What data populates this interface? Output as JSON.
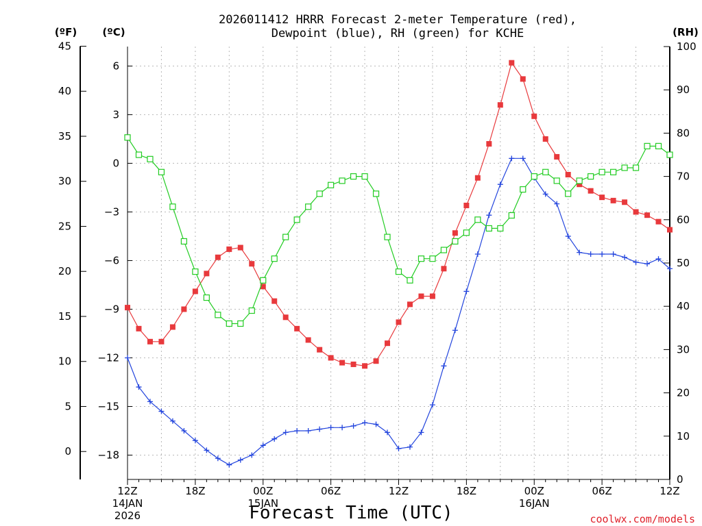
{
  "chart_data": {
    "type": "line",
    "title": "2026011412 HRRR Forecast 2-meter Temperature (red),",
    "subtitle": "Dewpoint (blue), RH (green) for KCHE",
    "xlabel": "Forecast Time (UTC)",
    "ylabel_left_f": "(ºF)",
    "ylabel_left_c": "(ºC)",
    "ylabel_right": "(RH)",
    "credit": "coolwx.com/models",
    "x_hours": [
      0,
      1,
      2,
      3,
      4,
      5,
      6,
      7,
      8,
      9,
      10,
      11,
      12,
      13,
      14,
      15,
      16,
      17,
      18,
      19,
      20,
      21,
      22,
      23,
      24,
      25,
      26,
      27,
      28,
      29,
      30,
      31,
      32,
      33,
      34,
      35,
      36,
      37,
      38,
      39,
      40,
      41,
      42,
      43,
      44,
      45,
      46,
      47,
      48
    ],
    "x_ticks": [
      {
        "hour": 0,
        "line1": "12Z",
        "line2": "14JAN",
        "line3": "2026"
      },
      {
        "hour": 6,
        "line1": "18Z",
        "line2": "",
        "line3": ""
      },
      {
        "hour": 12,
        "line1": "00Z",
        "line2": "15JAN",
        "line3": ""
      },
      {
        "hour": 18,
        "line1": "06Z",
        "line2": "",
        "line3": ""
      },
      {
        "hour": 24,
        "line1": "12Z",
        "line2": "",
        "line3": ""
      },
      {
        "hour": 30,
        "line1": "18Z",
        "line2": "",
        "line3": ""
      },
      {
        "hour": 36,
        "line1": "00Z",
        "line2": "16JAN",
        "line3": ""
      },
      {
        "hour": 42,
        "line1": "06Z",
        "line2": "",
        "line3": ""
      },
      {
        "hour": 48,
        "line1": "12Z",
        "line2": "",
        "line3": ""
      }
    ],
    "ylim_c": [
      -19.5,
      7.2
    ],
    "ylim_f_axis": [
      -3.1,
      45
    ],
    "ylim_rh": [
      0,
      100
    ],
    "y_ticks_c": [
      6,
      3,
      0,
      -3,
      -6,
      -9,
      -12,
      -15,
      -18
    ],
    "y_ticks_c_labels": [
      "6",
      "3",
      "0",
      "−3",
      "−6",
      "−9",
      "−12",
      "−15",
      "−18"
    ],
    "y_ticks_f": [
      45,
      40,
      35,
      30,
      25,
      20,
      15,
      10,
      5,
      0
    ],
    "y_ticks_rh": [
      100,
      90,
      80,
      70,
      60,
      50,
      40,
      30,
      20,
      10,
      0
    ],
    "grid": true,
    "series": [
      {
        "name": "Temperature",
        "units": "C",
        "color": "#e8393c",
        "marker": "filled-square",
        "values": [
          -8.9,
          -10.2,
          -11.0,
          -11.0,
          -10.1,
          -9.0,
          -7.9,
          -6.8,
          -5.8,
          -5.3,
          -5.2,
          -6.2,
          -7.6,
          -8.5,
          -9.5,
          -10.2,
          -10.9,
          -11.5,
          -12.0,
          -12.3,
          -12.4,
          -12.5,
          -12.2,
          -11.1,
          -9.8,
          -8.7,
          -8.2,
          -8.2,
          -6.5,
          -4.3,
          -2.6,
          -0.9,
          1.2,
          3.6,
          6.2,
          5.2,
          2.9,
          1.5,
          0.4,
          -0.7,
          -1.3,
          -1.7,
          -2.1,
          -2.3,
          -2.4,
          -3.0,
          -3.2,
          -3.6,
          -4.1
        ]
      },
      {
        "name": "Dewpoint",
        "units": "C",
        "color": "#2244dd",
        "marker": "plus",
        "values": [
          -12.0,
          -13.8,
          -14.7,
          -15.3,
          -15.9,
          -16.5,
          -17.1,
          -17.7,
          -18.2,
          -18.6,
          -18.3,
          -18.0,
          -17.4,
          -17.0,
          -16.6,
          -16.5,
          -16.5,
          -16.4,
          -16.3,
          -16.3,
          -16.2,
          -16.0,
          -16.1,
          -16.6,
          -17.6,
          -17.5,
          -16.6,
          -14.9,
          -12.5,
          -10.3,
          -7.9,
          -5.6,
          -3.2,
          -1.3,
          0.3,
          0.3,
          -0.9,
          -1.9,
          -2.5,
          -4.5,
          -5.5,
          -5.6,
          -5.6,
          -5.6,
          -5.8,
          -6.1,
          -6.2,
          -5.9,
          -6.5
        ]
      },
      {
        "name": "RH",
        "units": "%",
        "color": "#22cc22",
        "marker": "open-square",
        "values": [
          79,
          75,
          74,
          71,
          63,
          55,
          48,
          42,
          38,
          36,
          36,
          39,
          46,
          51,
          56,
          60,
          63,
          66,
          68,
          69,
          70,
          70,
          66,
          56,
          48,
          46,
          51,
          51,
          53,
          55,
          57,
          60,
          58,
          58,
          61,
          67,
          70,
          71,
          69,
          66,
          69,
          70,
          71,
          71,
          72,
          72,
          77,
          77,
          75
        ]
      }
    ]
  }
}
